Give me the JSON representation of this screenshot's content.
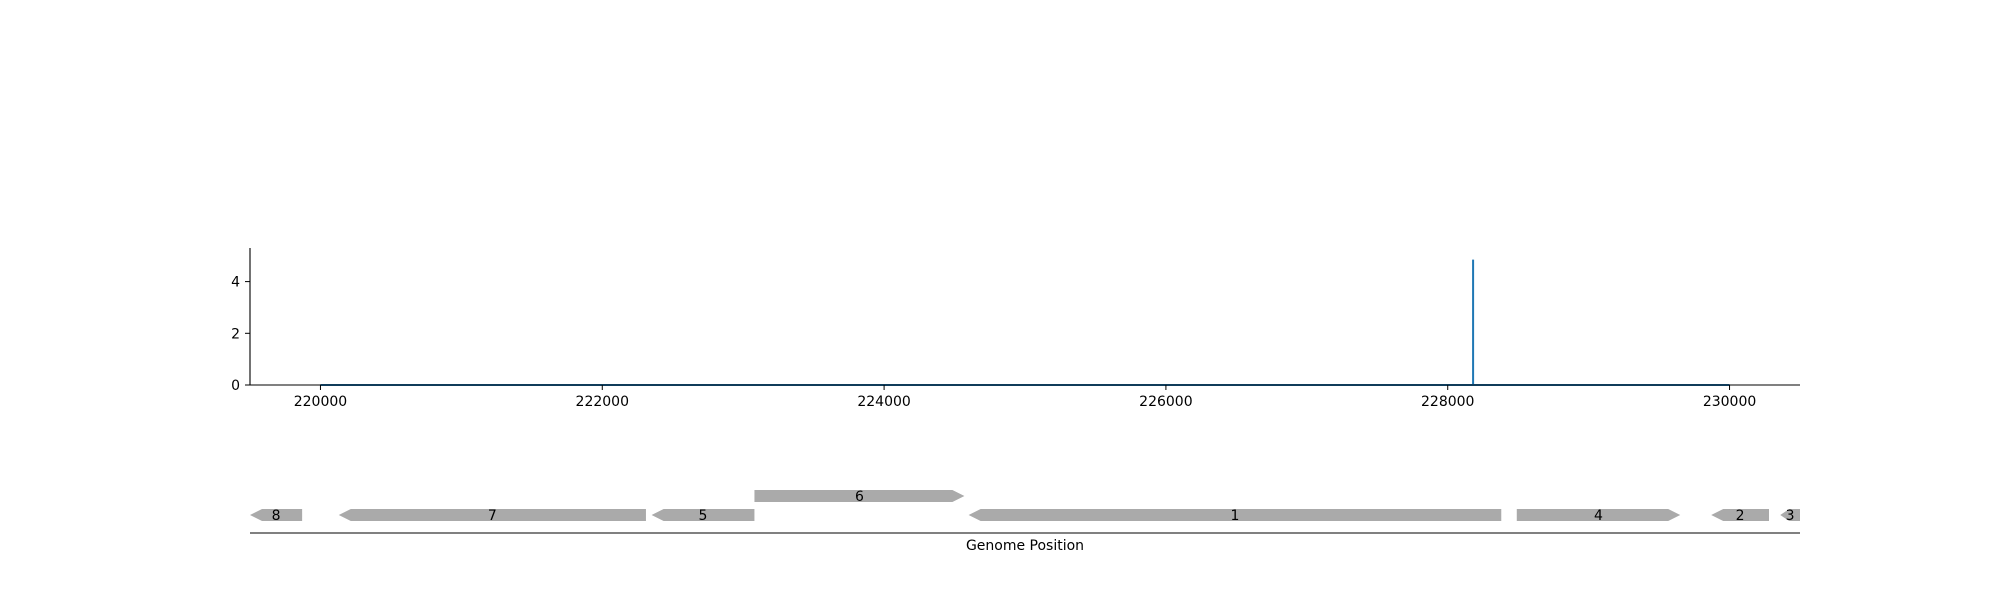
{
  "chart_data": [
    {
      "type": "line",
      "title": "",
      "xlabel": "",
      "ylabel": "",
      "xlim": [
        219500,
        230500
      ],
      "ylim": [
        0,
        5.3
      ],
      "xticks": [
        220000,
        222000,
        224000,
        226000,
        228000,
        230000
      ],
      "xtick_labels": [
        "220000",
        "222000",
        "224000",
        "226000",
        "228000",
        "230000"
      ],
      "yticks": [
        0,
        2,
        4
      ],
      "ytick_labels": [
        "0",
        "2",
        "4"
      ],
      "grid": false,
      "series": [
        {
          "color": "#1f77b4",
          "x": [
            220000,
            228180,
            228180,
            228180,
            230000
          ],
          "y": [
            0,
            0,
            4.85,
            0,
            0
          ]
        }
      ]
    },
    {
      "type": "gene_track",
      "xlabel": "Genome Position",
      "xlim": [
        219500,
        230500
      ],
      "color": "#aaaaaa",
      "features": [
        {
          "label": "8",
          "start": 219500,
          "end": 219870,
          "strand": "-",
          "row": 0
        },
        {
          "label": "7",
          "start": 220130,
          "end": 222310,
          "strand": "-",
          "row": 0
        },
        {
          "label": "5",
          "start": 222350,
          "end": 223080,
          "strand": "-",
          "row": 0
        },
        {
          "label": "6",
          "start": 223080,
          "end": 224570,
          "strand": "+",
          "row": 1
        },
        {
          "label": "1",
          "start": 224600,
          "end": 228380,
          "strand": "-",
          "row": 0
        },
        {
          "label": "4",
          "start": 228490,
          "end": 229650,
          "strand": "+",
          "row": 0
        },
        {
          "label": "2",
          "start": 229870,
          "end": 230280,
          "strand": "-",
          "row": 0
        },
        {
          "label": "3",
          "start": 230360,
          "end": 230500,
          "strand": "-",
          "row": 0
        }
      ]
    }
  ]
}
